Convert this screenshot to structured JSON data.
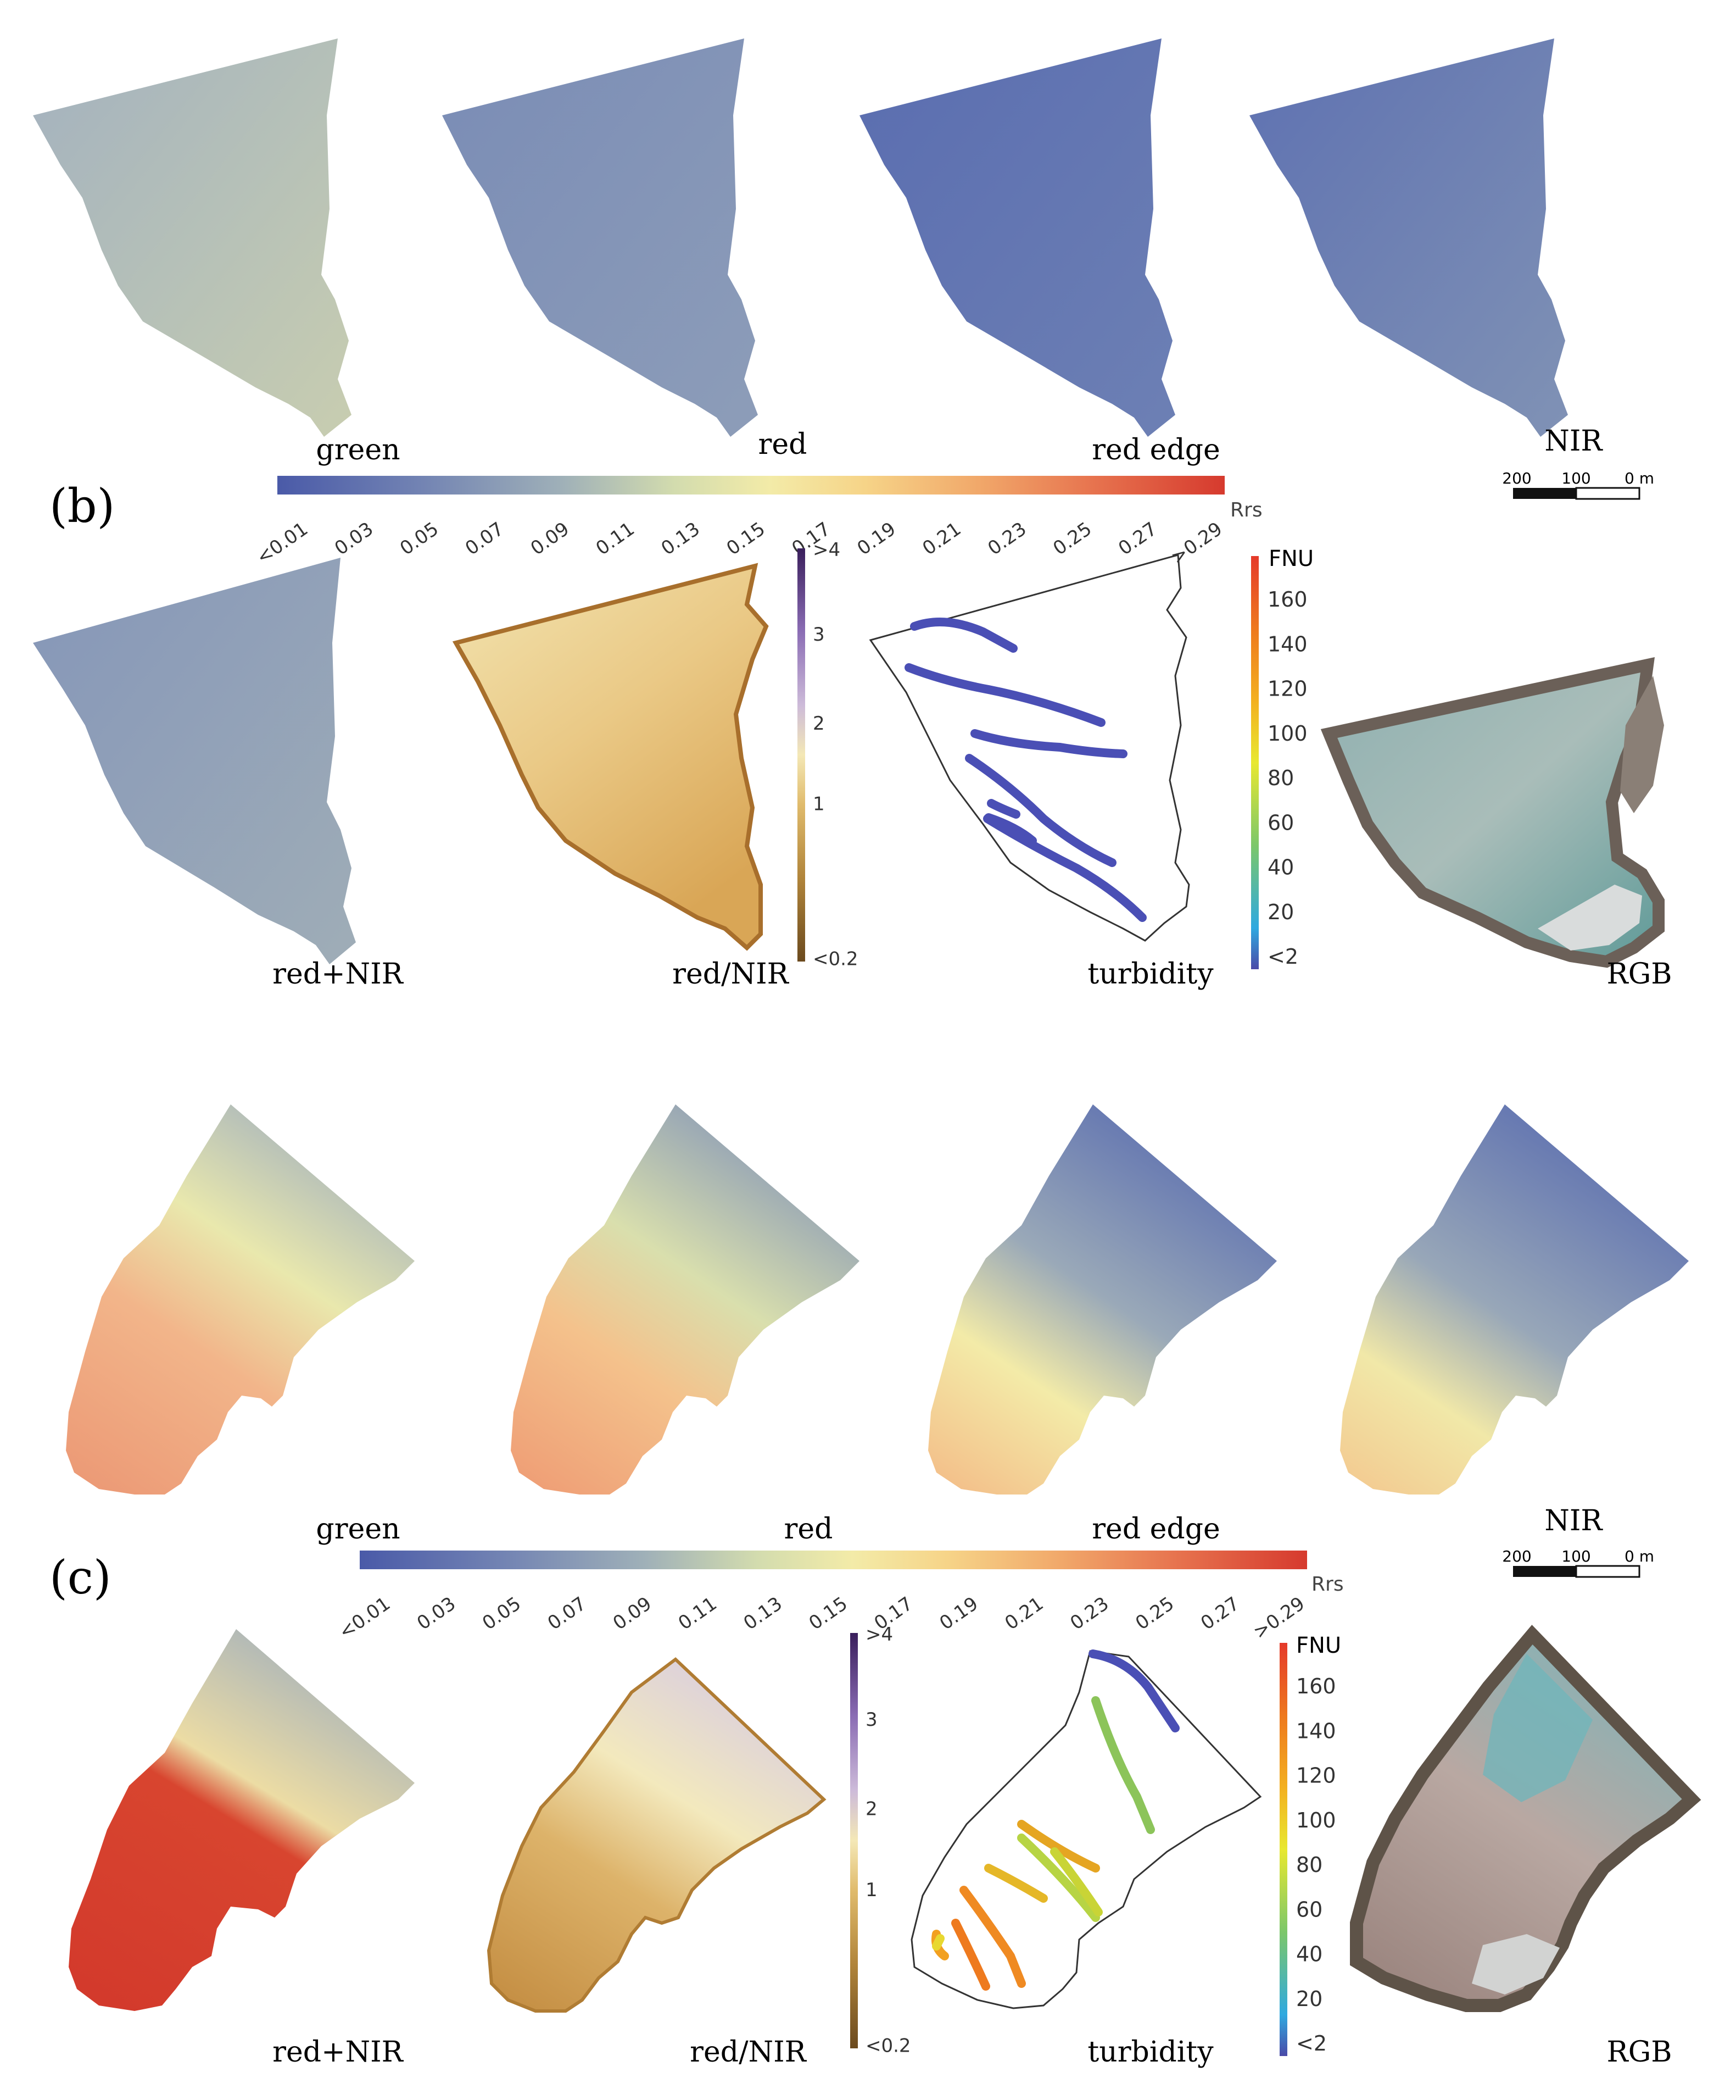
{
  "panels": {
    "b": {
      "label": "(b)",
      "band_titles": [
        "green",
        "red",
        "red edge",
        "NIR"
      ],
      "rrs_colorbar": {
        "unit": "Rrs",
        "ticks": [
          "<0.01",
          "0.03",
          "0.05",
          "0.07",
          "0.09",
          "0.11",
          "0.13",
          "0.15",
          "0.17",
          "0.19",
          "0.21",
          "0.23",
          "0.25",
          "0.27",
          ">0.29"
        ]
      },
      "scalebar": {
        "labels": [
          "200",
          "100",
          "0 m"
        ]
      },
      "index_titles": [
        "red+NIR",
        "red/NIR",
        "turbidity",
        "RGB"
      ],
      "ratio_colorbar": {
        "ticks": [
          ">4",
          "3",
          "2",
          "1",
          "<0.2"
        ]
      },
      "fnu_colorbar": {
        "unit": "FNU",
        "ticks": [
          "160",
          "140",
          "120",
          "100",
          "80",
          "60",
          "40",
          "20",
          "<2"
        ]
      }
    },
    "c": {
      "label": "(c)",
      "band_titles": [
        "green",
        "red",
        "red edge",
        "NIR"
      ],
      "rrs_colorbar": {
        "unit": "Rrs",
        "ticks": [
          "<0.01",
          "0.03",
          "0.05",
          "0.07",
          "0.09",
          "0.11",
          "0.13",
          "0.15",
          "0.17",
          "0.19",
          "0.21",
          "0.23",
          "0.25",
          "0.27",
          ">0.29"
        ]
      },
      "scalebar": {
        "labels": [
          "200",
          "100",
          "0 m"
        ]
      },
      "index_titles": [
        "red+NIR",
        "red/NIR",
        "turbidity",
        "RGB"
      ],
      "ratio_colorbar": {
        "ticks": [
          ">4",
          "3",
          "2",
          "1",
          "<0.2"
        ]
      },
      "fnu_colorbar": {
        "unit": "FNU",
        "ticks": [
          "160",
          "140",
          "120",
          "100",
          "80",
          "60",
          "40",
          "20",
          "<2"
        ]
      }
    }
  },
  "colors": {
    "rrs_ramp": [
      "#4a5aa8",
      "#6b7db4",
      "#8fa0b8",
      "#b4c2b4",
      "#d8dfae",
      "#f3eba8",
      "#f7d98c",
      "#f4b574",
      "#ee8d5c",
      "#e2624a",
      "#d83a30"
    ],
    "ratio_ramp": [
      "#6b4a1e",
      "#a67a2e",
      "#d6ab5a",
      "#eed79a",
      "#f6efc8",
      "#c9b9d9",
      "#9a82bf",
      "#5a3c86",
      "#3a1f5c"
    ],
    "fnu_ramp": [
      "#4a4aa8",
      "#2fa9e0",
      "#7cc76a",
      "#e8e830",
      "#f3b020",
      "#ee7a1e",
      "#e53a2a"
    ],
    "turbidity_b": "#4a4fb5",
    "outline": "#333333"
  }
}
